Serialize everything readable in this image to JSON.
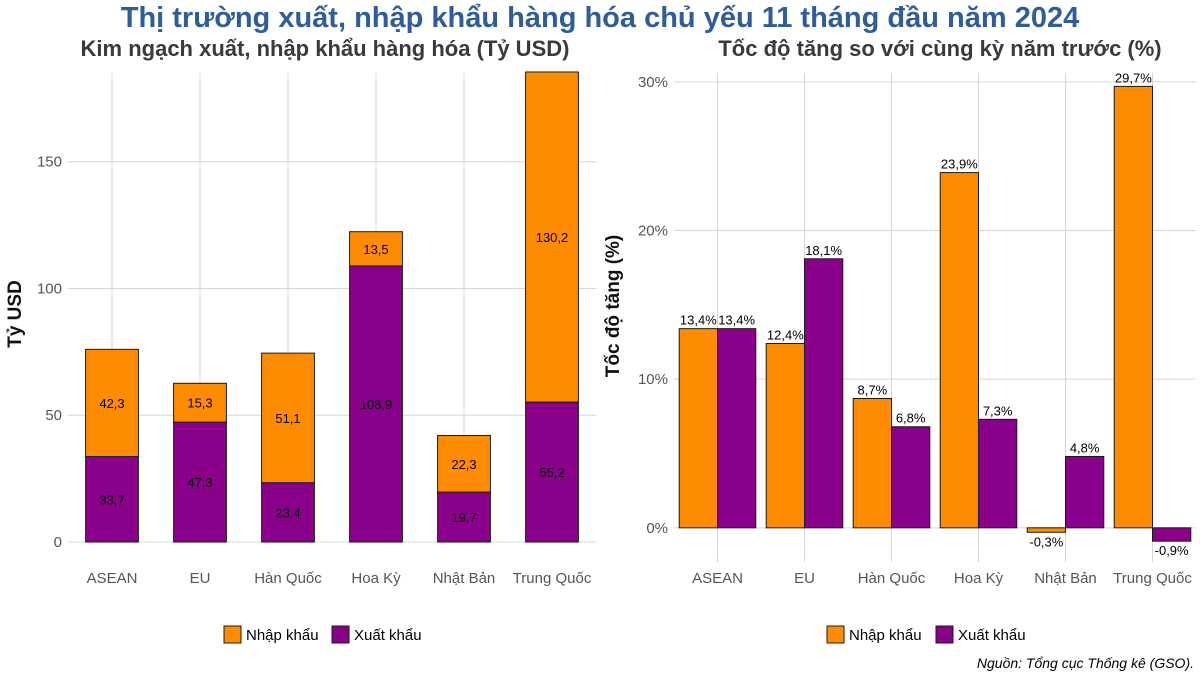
{
  "title": "Thị trường xuất, nhập khẩu hàng hóa chủ yếu 11 tháng đầu năm 2024",
  "source": "Nguồn: Tổng cục Thống kê (GSO).",
  "colors": {
    "import": "#ff8c00",
    "export": "#8b008b",
    "bar_border": "#1a1a1a",
    "title": "#2e5d99"
  },
  "legend": {
    "import_label": "Nhập khẩu",
    "export_label": "Xuất khẩu"
  },
  "chart_data": [
    {
      "type": "bar",
      "stacked": true,
      "title": "Kim ngạch xuất, nhập khẩu hàng hóa (Tỷ USD)",
      "xlabel": "",
      "ylabel": "Tỷ USD",
      "ylim": [
        0,
        185
      ],
      "yticks": [
        0,
        50,
        100,
        150
      ],
      "ytick_labels": [
        "0",
        "50",
        "100",
        "150"
      ],
      "grid": true,
      "legend_position": "bottom",
      "categories": [
        "ASEAN",
        "EU",
        "Hàn Quốc",
        "Hoa Kỳ",
        "Nhật Bản",
        "Trung Quốc"
      ],
      "series": [
        {
          "name": "Xuất khẩu",
          "values": [
            33.7,
            47.3,
            23.4,
            108.9,
            19.7,
            55.2
          ],
          "labels": [
            "33,7",
            "47,3",
            "23,4",
            "108,9",
            "19,7",
            "55,2"
          ]
        },
        {
          "name": "Nhập khẩu",
          "values": [
            42.3,
            15.3,
            51.1,
            13.5,
            22.3,
            130.2
          ],
          "labels": [
            "42,3",
            "15,3",
            "51,1",
            "13,5",
            "22,3",
            "130,2"
          ]
        }
      ]
    },
    {
      "type": "bar",
      "stacked": false,
      "title": "Tốc độ tăng so với cùng kỳ năm trước (%)",
      "xlabel": "",
      "ylabel": "Tốc độ tăng (%)",
      "ylim": [
        -2.3,
        30.6
      ],
      "yticks": [
        0,
        10,
        20,
        30
      ],
      "ytick_labels": [
        "0%",
        "10%",
        "20%",
        "30%"
      ],
      "grid": true,
      "legend_position": "bottom",
      "categories": [
        "ASEAN",
        "EU",
        "Hàn Quốc",
        "Hoa Kỳ",
        "Nhật Bản",
        "Trung Quốc"
      ],
      "series": [
        {
          "name": "Nhập khẩu",
          "values": [
            13.4,
            12.4,
            8.7,
            23.9,
            -0.3,
            29.7
          ],
          "labels": [
            "13,4%",
            "12,4%",
            "8,7%",
            "23,9%",
            "-0,3%",
            "29,7%"
          ]
        },
        {
          "name": "Xuất khẩu",
          "values": [
            13.4,
            18.1,
            6.8,
            7.3,
            4.8,
            -0.9
          ],
          "labels": [
            "13,4%",
            "18,1%",
            "6,8%",
            "7,3%",
            "4,8%",
            "-0,9%"
          ]
        }
      ]
    }
  ]
}
